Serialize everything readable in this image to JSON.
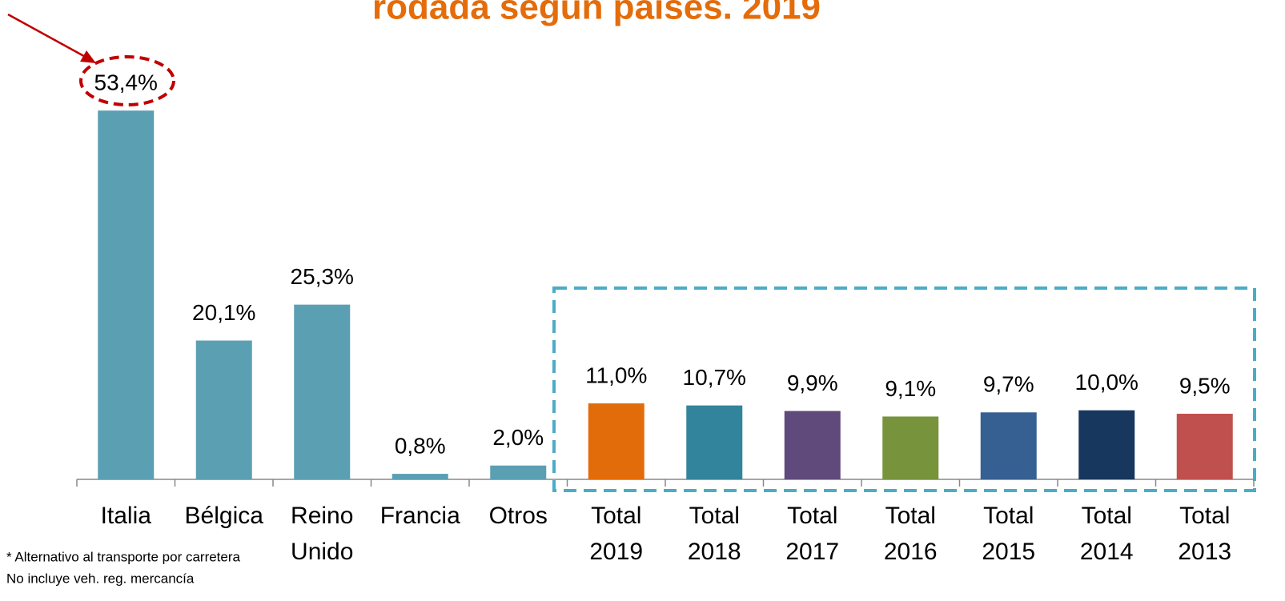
{
  "chart_data": {
    "type": "bar",
    "title": "rodada según países. 2019",
    "categories": [
      "Italia",
      "Bélgica",
      "Reino Unido",
      "Francia",
      "Otros",
      "Total 2019",
      "Total 2018",
      "Total 2017",
      "Total 2016",
      "Total 2015",
      "Total 2014",
      "Total 2013"
    ],
    "values": [
      53.4,
      20.1,
      25.3,
      0.8,
      2.0,
      11.0,
      10.7,
      9.9,
      9.1,
      9.7,
      10.0,
      9.5
    ],
    "value_labels": [
      "53,4%",
      "20,1%",
      "25,3%",
      "0,8%",
      "2,0%",
      "11,0%",
      "10,7%",
      "9,9%",
      "9,1%",
      "9,7%",
      "10,0%",
      "9,5%"
    ],
    "colors": [
      "#5b9fb3",
      "#5b9fb3",
      "#5b9fb3",
      "#5b9fb3",
      "#5b9fb3",
      "#e36c0a",
      "#31849b",
      "#604a7b",
      "#77933c",
      "#366092",
      "#17375e",
      "#c0504d"
    ],
    "ylim": [
      0,
      60
    ],
    "footnotes": [
      "*  Alternativo al transporte por carretera",
      "No incluye veh. reg. mercancía"
    ]
  }
}
